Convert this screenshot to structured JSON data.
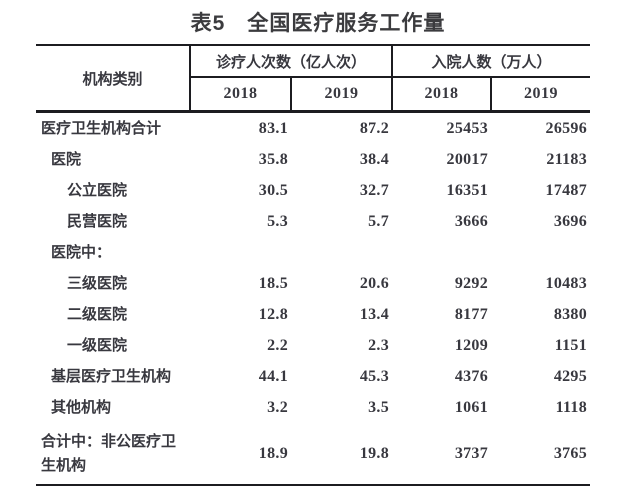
{
  "title": "表5　全国医疗服务工作量",
  "table": {
    "col_group_label": "机构类别",
    "groups": [
      {
        "label": "诊疗人次数（亿人次）",
        "years": [
          "2018",
          "2019"
        ]
      },
      {
        "label": "入院人数（万人）",
        "years": [
          "2018",
          "2019"
        ]
      }
    ],
    "rows": [
      {
        "label": "医疗卫生机构合计",
        "indent": 0,
        "values": [
          "83.1",
          "87.2",
          "25453",
          "26596"
        ]
      },
      {
        "label": "医院",
        "indent": 1,
        "values": [
          "35.8",
          "38.4",
          "20017",
          "21183"
        ]
      },
      {
        "label": "公立医院",
        "indent": 2,
        "values": [
          "30.5",
          "32.7",
          "16351",
          "17487"
        ]
      },
      {
        "label": "民营医院",
        "indent": 2,
        "values": [
          "5.3",
          "5.7",
          "3666",
          "3696"
        ]
      },
      {
        "label": "医院中：",
        "indent": 1,
        "values": [
          "",
          "",
          "",
          ""
        ]
      },
      {
        "label": "三级医院",
        "indent": 2,
        "values": [
          "18.5",
          "20.6",
          "9292",
          "10483"
        ]
      },
      {
        "label": "二级医院",
        "indent": 2,
        "values": [
          "12.8",
          "13.4",
          "8177",
          "8380"
        ]
      },
      {
        "label": "一级医院",
        "indent": 2,
        "values": [
          "2.2",
          "2.3",
          "1209",
          "1151"
        ]
      },
      {
        "label": "基层医疗卫生机构",
        "indent": 1,
        "values": [
          "44.1",
          "45.3",
          "4376",
          "4295"
        ]
      },
      {
        "label": "其他机构",
        "indent": 1,
        "values": [
          "3.2",
          "3.5",
          "1061",
          "1118"
        ]
      },
      {
        "label": "合计中：非公医疗卫生机构",
        "indent": 0,
        "values": [
          "18.9",
          "19.8",
          "3737",
          "3765"
        ]
      }
    ]
  }
}
